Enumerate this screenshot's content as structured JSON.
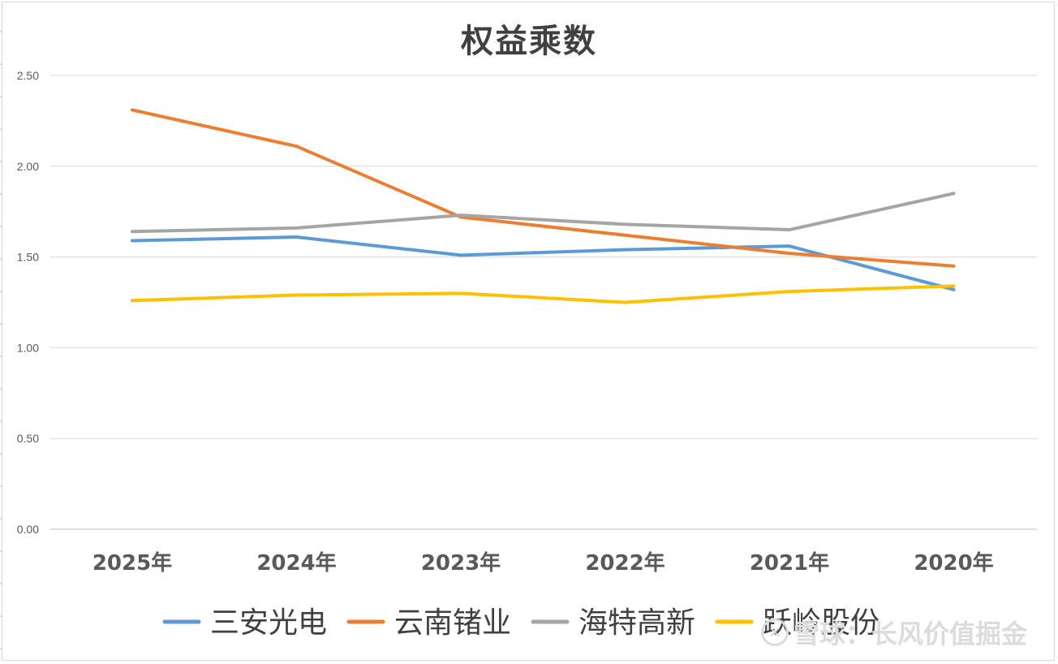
{
  "chart_data": {
    "type": "line",
    "title": "权益乘数",
    "categories": [
      "2025年",
      "2024年",
      "2023年",
      "2022年",
      "2021年",
      "2020年"
    ],
    "ylim": [
      0,
      2.5
    ],
    "yticks": [
      "0.00",
      "0.50",
      "1.00",
      "1.50",
      "2.00",
      "2.50"
    ],
    "grid": true,
    "legend_position": "bottom",
    "series": [
      {
        "name": "三安光电",
        "color": "#5b9bd5",
        "values": [
          1.59,
          1.61,
          1.51,
          1.54,
          1.56,
          1.32
        ]
      },
      {
        "name": "云南锗业",
        "color": "#ed7d31",
        "values": [
          2.31,
          2.11,
          1.72,
          1.62,
          1.52,
          1.45
        ]
      },
      {
        "name": "海特高新",
        "color": "#a5a5a5",
        "values": [
          1.64,
          1.66,
          1.73,
          1.68,
          1.65,
          1.85
        ]
      },
      {
        "name": "跃岭股份",
        "color": "#ffc000",
        "values": [
          1.26,
          1.29,
          1.3,
          1.25,
          1.31,
          1.34
        ]
      }
    ]
  },
  "watermark": {
    "logo_glyph": "✕",
    "text": "雪球：长风价值掘金"
  }
}
